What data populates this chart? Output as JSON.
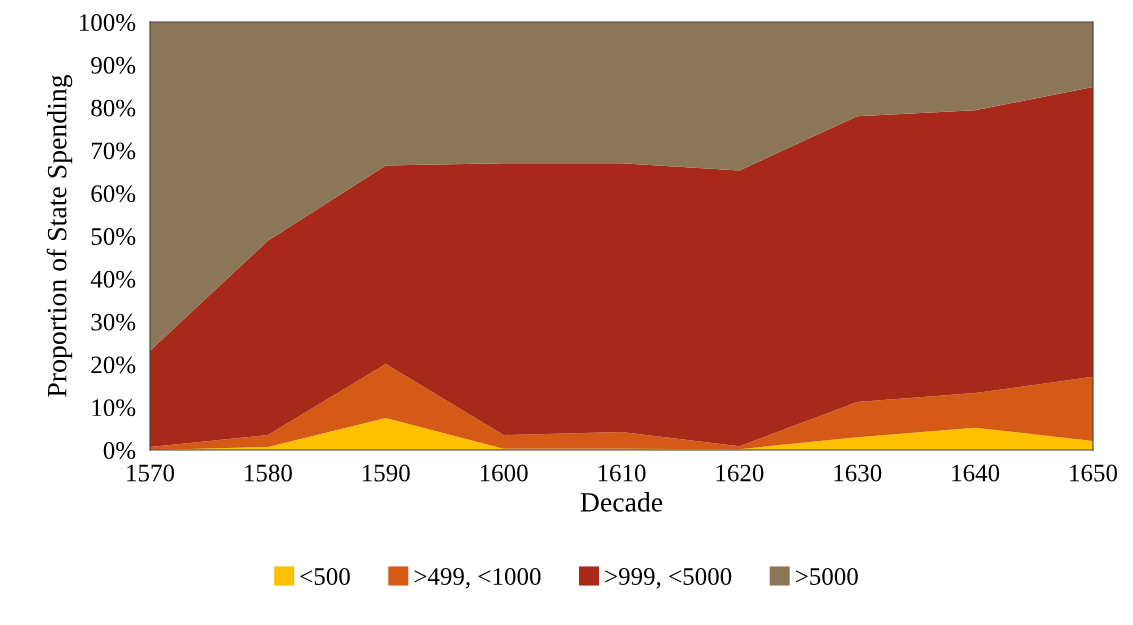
{
  "chart_data": {
    "type": "area",
    "stacked": true,
    "xlabel": "Decade",
    "ylabel": "Proportion of State Spending",
    "x": [
      1570,
      1580,
      1590,
      1600,
      1610,
      1620,
      1630,
      1640,
      1650
    ],
    "series": [
      {
        "name": "<500",
        "color": "#ffc000",
        "values": [
          0,
          0.7,
          7.5,
          0.3,
          0.3,
          0.2,
          3.0,
          5.2,
          2.1
        ]
      },
      {
        "name": ">499, <1000",
        "color": "#d55a16",
        "values": [
          0.7,
          2.8,
          12.6,
          3.2,
          3.9,
          0.7,
          8.2,
          8.1,
          15.0
        ]
      },
      {
        "name": ">999, <5000",
        "color": "#a8281a",
        "values": [
          22.5,
          45.4,
          46.4,
          63.5,
          62.8,
          64.4,
          66.8,
          66.1,
          67.7
        ]
      },
      {
        "name": ">5000",
        "color": "#8b7757",
        "values": [
          76.8,
          51.1,
          33.5,
          33,
          33,
          34.7,
          22,
          20.6,
          15.2
        ]
      }
    ],
    "xlim": [
      1570,
      1650
    ],
    "xticks": [
      1570,
      1580,
      1590,
      1600,
      1610,
      1620,
      1630,
      1640,
      1650
    ],
    "ylim": [
      0,
      100
    ],
    "yticks": [
      {
        "value": 0,
        "label": "0%"
      },
      {
        "value": 10,
        "label": "10%"
      },
      {
        "value": 20,
        "label": "20%"
      },
      {
        "value": 30,
        "label": "30%"
      },
      {
        "value": 40,
        "label": "40%"
      },
      {
        "value": 50,
        "label": "50%"
      },
      {
        "value": 60,
        "label": "60%"
      },
      {
        "value": 70,
        "label": "70%"
      },
      {
        "value": 80,
        "label": "80%"
      },
      {
        "value": 90,
        "label": "90%"
      },
      {
        "value": 100,
        "label": "100%"
      }
    ],
    "grid": false,
    "legend": "bottom"
  }
}
